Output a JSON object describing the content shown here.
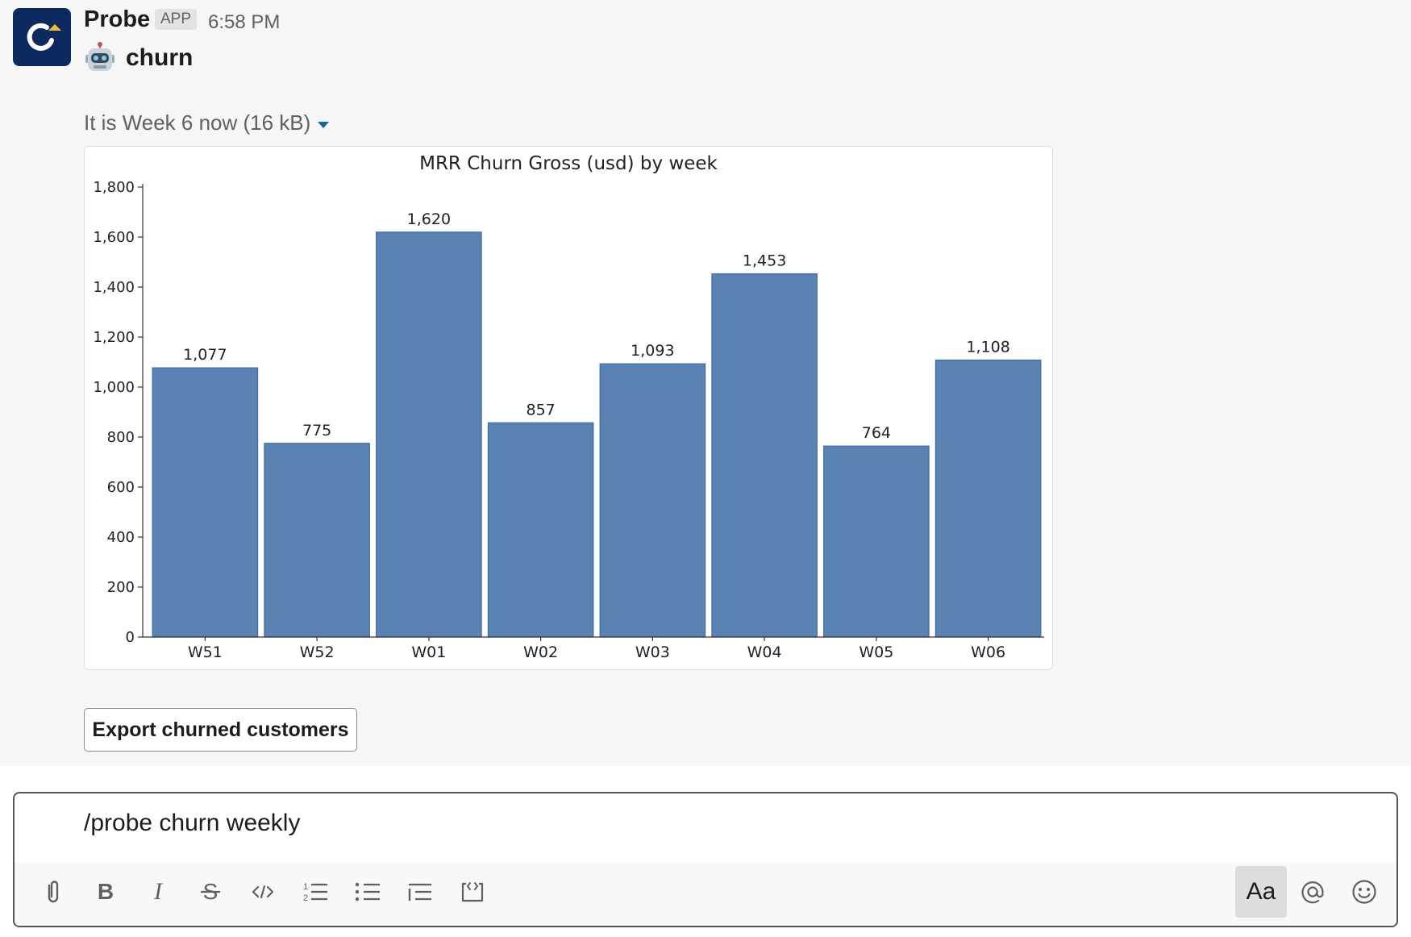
{
  "message": {
    "sender": "Probe",
    "app_badge": "APP",
    "time": "6:58 PM",
    "subtitle": "churn",
    "file_title": "It is Week 6 now",
    "file_size": "(16 kB)",
    "button_label": "Export churned customers"
  },
  "composer": {
    "text": "/probe churn weekly",
    "aa_label": "Aa"
  },
  "colors": {
    "avatar_bg": "#0c2a60",
    "bar": "#5a82b3",
    "link": "#1264a3"
  },
  "chart_data": {
    "type": "bar",
    "title": "MRR Churn Gross (usd) by week",
    "categories": [
      "W51",
      "W52",
      "W01",
      "W02",
      "W03",
      "W04",
      "W05",
      "W06"
    ],
    "values": [
      1077,
      775,
      1620,
      857,
      1093,
      1453,
      764,
      1108
    ],
    "data_labels": [
      "1,077",
      "775",
      "1,620",
      "857",
      "1,093",
      "1,453",
      "764",
      "1,108"
    ],
    "yticks": [
      0,
      200,
      400,
      600,
      800,
      1000,
      1200,
      1400,
      1600,
      1800
    ],
    "ytick_labels": [
      "0",
      "200",
      "400",
      "600",
      "800",
      "1,000",
      "1,200",
      "1,400",
      "1,600",
      "1,800"
    ],
    "ylim": [
      0,
      1800
    ],
    "grid": false,
    "legend": "none"
  }
}
